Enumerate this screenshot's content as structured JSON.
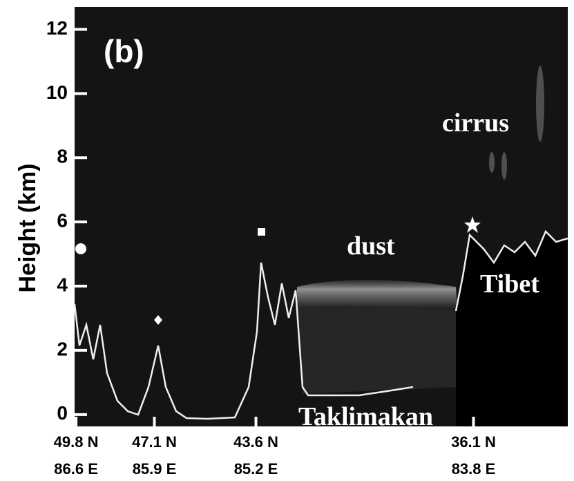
{
  "chart_data": {
    "type": "lidar-profile",
    "ylabel": "Height (km)",
    "ylim": [
      -0.37,
      12.7
    ],
    "yticks": [
      0,
      2,
      4,
      6,
      8,
      10,
      12
    ],
    "xlim": [
      49.85,
      32.85
    ],
    "xticks": [
      {
        "value": 49.8,
        "label": "49.8 N"
      },
      {
        "value": 47.1,
        "label": "47.1 N"
      },
      {
        "value": 43.6,
        "label": "43.6 N"
      },
      {
        "value": 36.1,
        "label": "36.1 N"
      }
    ],
    "xtick_sublabels": [
      "86.6 E",
      "85.9 E",
      "85.2 E",
      "83.8 E"
    ],
    "panel_label": "(b)",
    "annotations": [
      "cirrus",
      "dust",
      "Tibet",
      "Taklimakan"
    ]
  }
}
